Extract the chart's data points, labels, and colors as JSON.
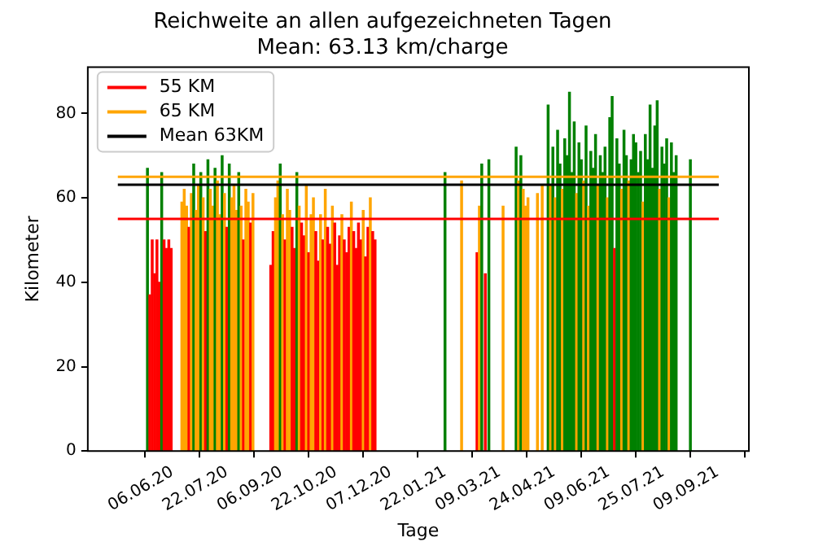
{
  "chart_data": {
    "type": "bar",
    "title": "Reichweite an allen aufgezeichneten Tagen",
    "subtitle": "Mean: 63.13 km/charge",
    "xlabel": "Tage",
    "ylabel": "Kilometer",
    "x": [
      "2020-05-16",
      "2020-05-18",
      "2020-05-20",
      "2020-05-22",
      "2020-05-24",
      "2020-05-26",
      "2020-05-28",
      "2020-05-30",
      "2020-06-01",
      "2020-06-03",
      "2020-06-05",
      "2020-06-14",
      "2020-06-16",
      "2020-06-18",
      "2020-06-20",
      "2020-06-22",
      "2020-06-24",
      "2020-06-26",
      "2020-06-28",
      "2020-06-30",
      "2020-07-02",
      "2020-07-04",
      "2020-07-06",
      "2020-07-08",
      "2020-07-10",
      "2020-07-12",
      "2020-07-14",
      "2020-07-16",
      "2020-07-18",
      "2020-07-20",
      "2020-07-22",
      "2020-07-24",
      "2020-07-26",
      "2020-07-28",
      "2020-07-30",
      "2020-08-01",
      "2020-08-03",
      "2020-08-05",
      "2020-08-07",
      "2020-08-09",
      "2020-08-11",
      "2020-08-13",
      "2020-08-28",
      "2020-08-30",
      "2020-09-01",
      "2020-09-03",
      "2020-09-05",
      "2020-09-07",
      "2020-09-09",
      "2020-09-11",
      "2020-09-13",
      "2020-09-15",
      "2020-09-17",
      "2020-09-19",
      "2020-09-21",
      "2020-09-23",
      "2020-09-25",
      "2020-09-27",
      "2020-09-29",
      "2020-10-01",
      "2020-10-03",
      "2020-10-05",
      "2020-10-07",
      "2020-10-09",
      "2020-10-11",
      "2020-10-13",
      "2020-10-15",
      "2020-10-17",
      "2020-10-19",
      "2020-10-21",
      "2020-10-23",
      "2020-10-25",
      "2020-10-27",
      "2020-10-29",
      "2020-10-31",
      "2020-11-02",
      "2020-11-04",
      "2020-11-06",
      "2020-11-08",
      "2020-11-10",
      "2020-11-12",
      "2020-11-14",
      "2020-11-16",
      "2020-11-18",
      "2020-11-20",
      "2020-11-22",
      "2020-11-24",
      "2021-01-22",
      "2021-02-05",
      "2021-02-18",
      "2021-02-20",
      "2021-02-22",
      "2021-02-25",
      "2021-02-28",
      "2021-03-12",
      "2021-03-23",
      "2021-03-25",
      "2021-03-27",
      "2021-03-29",
      "2021-03-31",
      "2021-04-02",
      "2021-04-10",
      "2021-04-14",
      "2021-04-19",
      "2021-04-21",
      "2021-04-23",
      "2021-04-25",
      "2021-04-27",
      "2021-04-29",
      "2021-05-01",
      "2021-05-03",
      "2021-05-05",
      "2021-05-07",
      "2021-05-09",
      "2021-05-11",
      "2021-05-13",
      "2021-05-15",
      "2021-05-17",
      "2021-05-19",
      "2021-05-21",
      "2021-05-23",
      "2021-05-25",
      "2021-05-27",
      "2021-05-29",
      "2021-05-31",
      "2021-06-02",
      "2021-06-04",
      "2021-06-06",
      "2021-06-08",
      "2021-06-10",
      "2021-06-12",
      "2021-06-14",
      "2021-06-16",
      "2021-06-18",
      "2021-06-20",
      "2021-06-22",
      "2021-06-24",
      "2021-06-26",
      "2021-06-28",
      "2021-06-30",
      "2021-07-02",
      "2021-07-04",
      "2021-07-06",
      "2021-07-08",
      "2021-07-10",
      "2021-07-12",
      "2021-07-14",
      "2021-07-16",
      "2021-07-18",
      "2021-07-20",
      "2021-07-22",
      "2021-07-24",
      "2021-07-26",
      "2021-07-28",
      "2021-07-30",
      "2021-08-01",
      "2021-08-03",
      "2021-08-05",
      "2021-08-17"
    ],
    "values": [
      67,
      37,
      50,
      42,
      50,
      40,
      66,
      50,
      48,
      50,
      48,
      59,
      62,
      58,
      53,
      61,
      68,
      57,
      63,
      66,
      60,
      52,
      69,
      62,
      58,
      67,
      64,
      56,
      70,
      61,
      53,
      68,
      60,
      63,
      57,
      66,
      58,
      50,
      62,
      59,
      54,
      61,
      44,
      52,
      60,
      64,
      68,
      56,
      50,
      62,
      57,
      53,
      48,
      66,
      58,
      54,
      51,
      63,
      47,
      56,
      60,
      52,
      45,
      56,
      50,
      62,
      53,
      49,
      58,
      54,
      44,
      51,
      56,
      50,
      47,
      53,
      59,
      52,
      48,
      54,
      50,
      57,
      46,
      53,
      60,
      52,
      50,
      66,
      64,
      47,
      58,
      68,
      42,
      69,
      58,
      72,
      64,
      70,
      62,
      58,
      60,
      61,
      63,
      82,
      63,
      72,
      60,
      76,
      68,
      62,
      74,
      70,
      85,
      66,
      78,
      61,
      73,
      69,
      64,
      77,
      58,
      71,
      67,
      75,
      63,
      70,
      66,
      72,
      60,
      79,
      84,
      48,
      74,
      68,
      62,
      76,
      70,
      64,
      69,
      75,
      73,
      66,
      71,
      59,
      75,
      69,
      82,
      67,
      77,
      83,
      62,
      72,
      68,
      74,
      60,
      73,
      66,
      70,
      69
    ],
    "colors": [
      "#008000",
      "#ff0000",
      "#ff0000",
      "#ff0000",
      "#ff0000",
      "#ff0000",
      "#008000",
      "#ff0000",
      "#ff0000",
      "#ff0000",
      "#ff0000",
      "#ffa500",
      "#ffa500",
      "#ffa500",
      "#ff0000",
      "#ffa500",
      "#008000",
      "#ffa500",
      "#ffa500",
      "#008000",
      "#ffa500",
      "#ff0000",
      "#008000",
      "#ffa500",
      "#ffa500",
      "#008000",
      "#ffa500",
      "#ffa500",
      "#008000",
      "#ffa500",
      "#ff0000",
      "#008000",
      "#ffa500",
      "#ffa500",
      "#ffa500",
      "#008000",
      "#ffa500",
      "#ff0000",
      "#ffa500",
      "#ffa500",
      "#ff0000",
      "#ffa500",
      "#ff0000",
      "#ff0000",
      "#ffa500",
      "#ffa500",
      "#008000",
      "#ffa500",
      "#ff0000",
      "#ffa500",
      "#ffa500",
      "#ff0000",
      "#ff0000",
      "#008000",
      "#ffa500",
      "#ff0000",
      "#ff0000",
      "#ffa500",
      "#ff0000",
      "#ffa500",
      "#ffa500",
      "#ff0000",
      "#ff0000",
      "#ffa500",
      "#ff0000",
      "#ffa500",
      "#ff0000",
      "#ff0000",
      "#ffa500",
      "#ff0000",
      "#ff0000",
      "#ff0000",
      "#ffa500",
      "#ff0000",
      "#ff0000",
      "#ff0000",
      "#ffa500",
      "#ff0000",
      "#ff0000",
      "#ff0000",
      "#ff0000",
      "#ffa500",
      "#ff0000",
      "#ff0000",
      "#ffa500",
      "#ff0000",
      "#ff0000",
      "#008000",
      "#ffa500",
      "#ff0000",
      "#ffa500",
      "#008000",
      "#ff0000",
      "#008000",
      "#ffa500",
      "#008000",
      "#ffa500",
      "#008000",
      "#ffa500",
      "#ffa500",
      "#ffa500",
      "#ffa500",
      "#ffa500",
      "#008000",
      "#ffa500",
      "#008000",
      "#ffa500",
      "#008000",
      "#008000",
      "#ffa500",
      "#008000",
      "#008000",
      "#008000",
      "#008000",
      "#008000",
      "#ffa500",
      "#008000",
      "#008000",
      "#ffa500",
      "#008000",
      "#ffa500",
      "#008000",
      "#008000",
      "#008000",
      "#ffa500",
      "#008000",
      "#008000",
      "#008000",
      "#ffa500",
      "#008000",
      "#008000",
      "#ff0000",
      "#008000",
      "#008000",
      "#ffa500",
      "#008000",
      "#008000",
      "#ffa500",
      "#008000",
      "#008000",
      "#008000",
      "#008000",
      "#008000",
      "#ffa500",
      "#008000",
      "#008000",
      "#008000",
      "#008000",
      "#008000",
      "#008000",
      "#ffa500",
      "#008000",
      "#008000",
      "#008000",
      "#ffa500",
      "#008000",
      "#008000",
      "#008000",
      "#008000"
    ],
    "xlim": [
      "2020-04-21",
      "2021-09-10"
    ],
    "xticks": [
      {
        "value": "2020-06-06",
        "label": "06.06.20"
      },
      {
        "value": "2020-07-22",
        "label": "22.07.20"
      },
      {
        "value": "2020-09-06",
        "label": "06.09.20"
      },
      {
        "value": "2020-10-22",
        "label": "22.10.20"
      },
      {
        "value": "2020-12-07",
        "label": "07.12.20"
      },
      {
        "value": "2021-01-22",
        "label": "22.01.21"
      },
      {
        "value": "2021-03-09",
        "label": "09.03.21"
      },
      {
        "value": "2021-04-24",
        "label": "24.04.21"
      },
      {
        "value": "2021-06-09",
        "label": "09.06.21"
      },
      {
        "value": "2021-07-25",
        "label": "25.07.21"
      },
      {
        "value": "2021-09-09",
        "label": "09.09.21"
      }
    ],
    "ylim": [
      0,
      91
    ],
    "yticks": [
      0,
      20,
      40,
      60,
      80
    ],
    "ref_lines": [
      {
        "axis": "y",
        "value": 55,
        "label": "55 KM",
        "color": "#ff0000",
        "line_style": "solid"
      },
      {
        "axis": "y",
        "value": 65,
        "label": "65 KM",
        "color": "#ffa500",
        "line_style": "solid"
      },
      {
        "axis": "y",
        "value": 63.13,
        "label": "Mean 63KM",
        "color": "#000000",
        "line_style": "solid"
      }
    ],
    "grid": false,
    "legend": "top left"
  }
}
